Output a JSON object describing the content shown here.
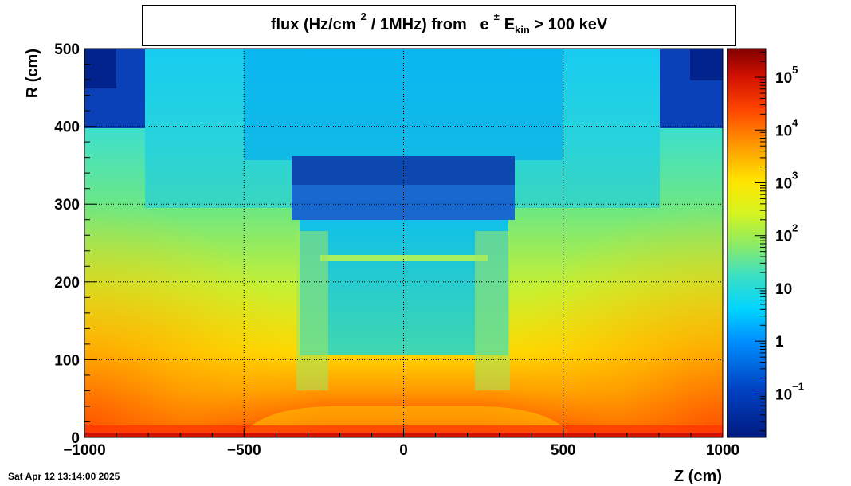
{
  "title": {
    "part1": "flux (Hz/cm",
    "sup1": "2",
    "part2": "/ 1MHz) from",
    "particle": "e",
    "particle_sup": "±",
    "ekin": "E",
    "ekin_sub": "kin",
    "part3": "> 100 keV"
  },
  "timestamp": "Sat Apr 12 13:14:00 2025",
  "chart_data": {
    "type": "heatmap",
    "xlabel": "Z (cm)",
    "ylabel": "R (cm)",
    "xlim": [
      -1000,
      1000
    ],
    "ylim": [
      0,
      500
    ],
    "x_ticks": [
      {
        "value": -1000,
        "label": "−1000"
      },
      {
        "value": -500,
        "label": "−500"
      },
      {
        "value": 0,
        "label": "0"
      },
      {
        "value": 500,
        "label": "500"
      },
      {
        "value": 1000,
        "label": "1000"
      }
    ],
    "y_ticks": [
      {
        "value": 0,
        "label": "0"
      },
      {
        "value": 100,
        "label": "100"
      },
      {
        "value": 200,
        "label": "200"
      },
      {
        "value": 300,
        "label": "300"
      },
      {
        "value": 400,
        "label": "400"
      },
      {
        "value": 500,
        "label": "500"
      }
    ],
    "grid": true,
    "colorbar": {
      "scale": "log",
      "range": [
        0.015,
        350000
      ],
      "ticks": [
        {
          "value": 0.1,
          "base": "10",
          "exp": "−1"
        },
        {
          "value": 1,
          "base": "1",
          "exp": ""
        },
        {
          "value": 10,
          "base": "10",
          "exp": ""
        },
        {
          "value": 100,
          "base": "10",
          "exp": "2"
        },
        {
          "value": 1000,
          "base": "10",
          "exp": "3"
        },
        {
          "value": 10000,
          "base": "10",
          "exp": "4"
        },
        {
          "value": 100000,
          "base": "10",
          "exp": "5"
        }
      ]
    }
  }
}
